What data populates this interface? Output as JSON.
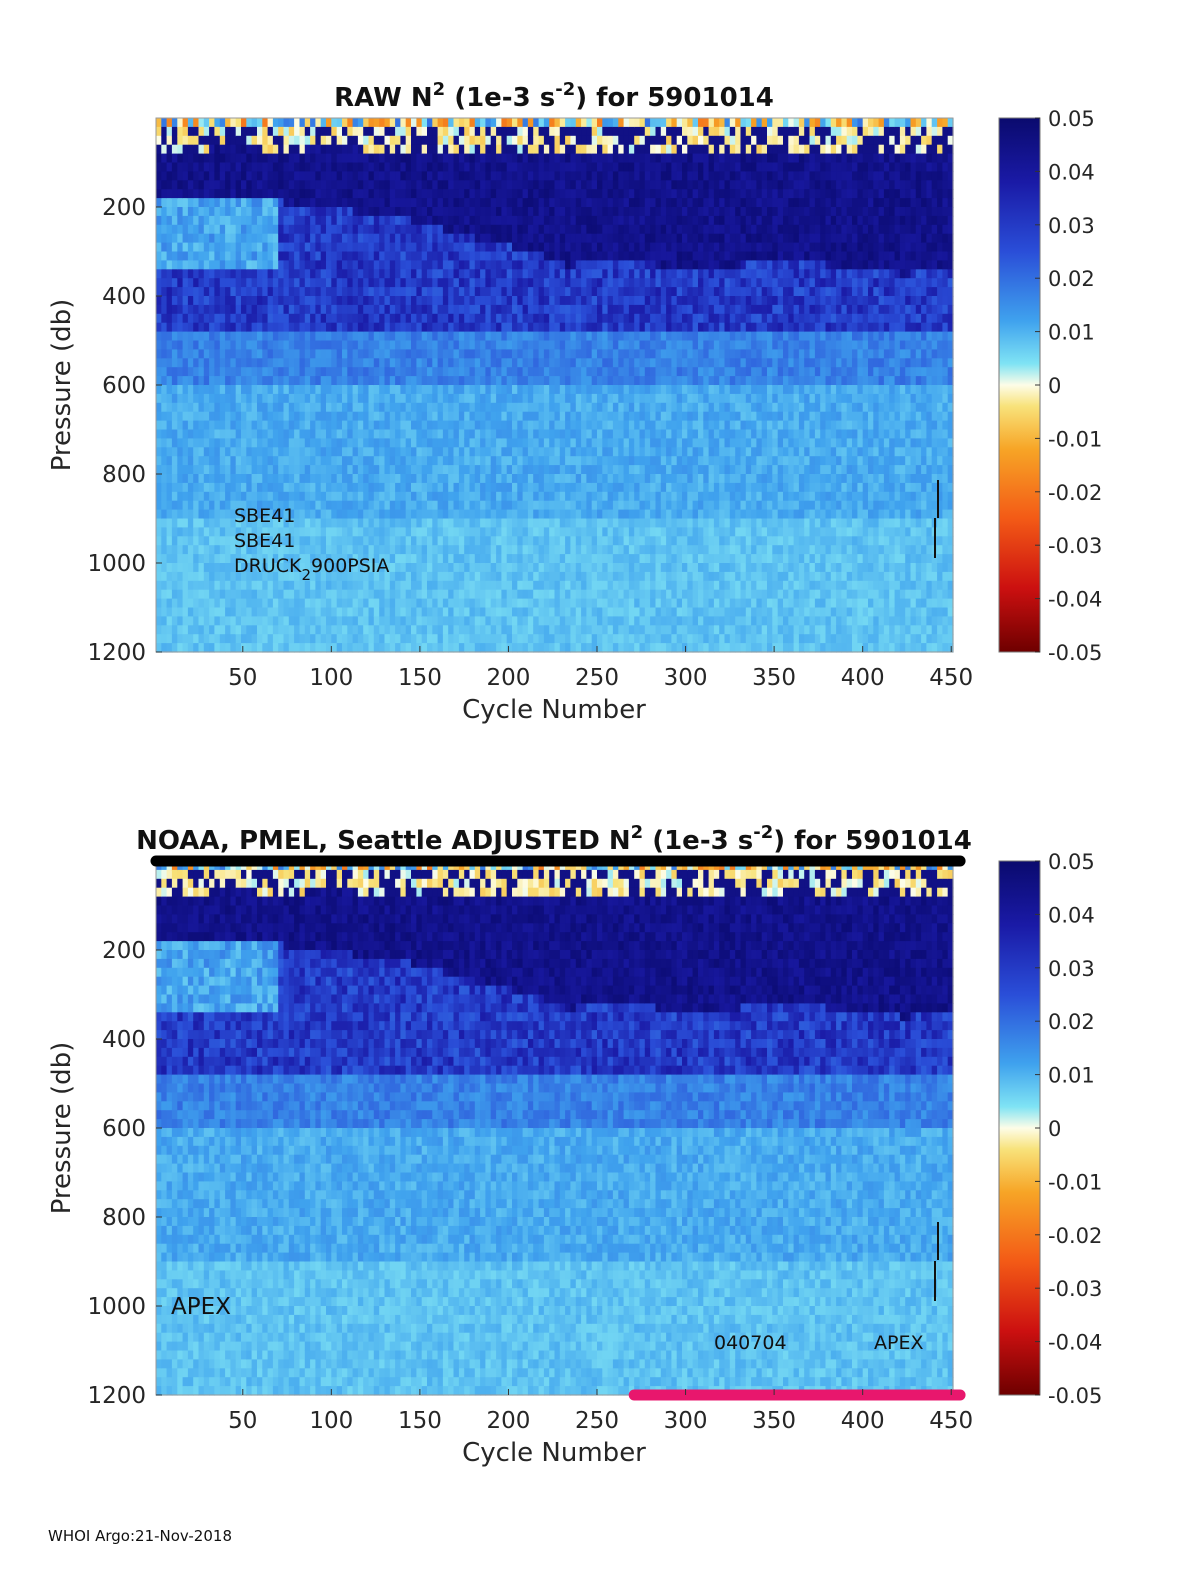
{
  "chart_data": [
    {
      "type": "heatmap",
      "title": {
        "pre": "RAW N",
        "sup1": "2",
        "mid": " (1e-3 s",
        "sup2": "-2",
        "post": ") for 5901014"
      },
      "xlabel": "Cycle Number",
      "ylabel": "Pressure (db)",
      "xlim": [
        1,
        451
      ],
      "ylim": [
        0,
        1200
      ],
      "y_reversed": true,
      "xticks": [
        50,
        100,
        150,
        200,
        250,
        300,
        350,
        400,
        450
      ],
      "yticks": [
        200,
        400,
        600,
        800,
        1000,
        1200
      ],
      "colorbar": {
        "range": [
          -0.05,
          0.05
        ],
        "ticks": [
          0.05,
          0.04,
          0.03,
          0.02,
          0.01,
          0,
          -0.01,
          -0.02,
          -0.03,
          -0.04,
          -0.05
        ]
      },
      "annotations": {
        "line1": "SBE41",
        "line2": "SBE41",
        "line3_pre": "DRUCK",
        "line3_sub": "2",
        "line3_post": "900PSIA"
      }
    },
    {
      "type": "heatmap",
      "title": {
        "pre": "NOAA, PMEL, Seattle  ADJUSTED N",
        "sup1": "2",
        "mid": " (1e-3 s",
        "sup2": "-2",
        "post": ") for 5901014"
      },
      "xlabel": "Cycle Number",
      "ylabel": "Pressure (db)",
      "xlim": [
        1,
        451
      ],
      "ylim": [
        0,
        1200
      ],
      "y_reversed": true,
      "xticks": [
        50,
        100,
        150,
        200,
        250,
        300,
        350,
        400,
        450
      ],
      "yticks": [
        200,
        400,
        600,
        800,
        1000,
        1200
      ],
      "colorbar": {
        "range": [
          -0.05,
          0.05
        ],
        "ticks": [
          0.05,
          0.04,
          0.03,
          0.02,
          0.01,
          0,
          -0.01,
          -0.02,
          -0.03,
          -0.04,
          -0.05
        ]
      },
      "annotations": {
        "left": "APEX",
        "date": "040704",
        "right": "APEX"
      },
      "qc_bars": [
        {
          "position": "top",
          "color": "#000000",
          "x_range": [
            1,
            455
          ]
        },
        {
          "position": "bottom",
          "color": "#e8176d",
          "x_range": [
            271,
            455
          ]
        }
      ]
    }
  ],
  "footer": "WHOI Argo:21-Nov-2018"
}
